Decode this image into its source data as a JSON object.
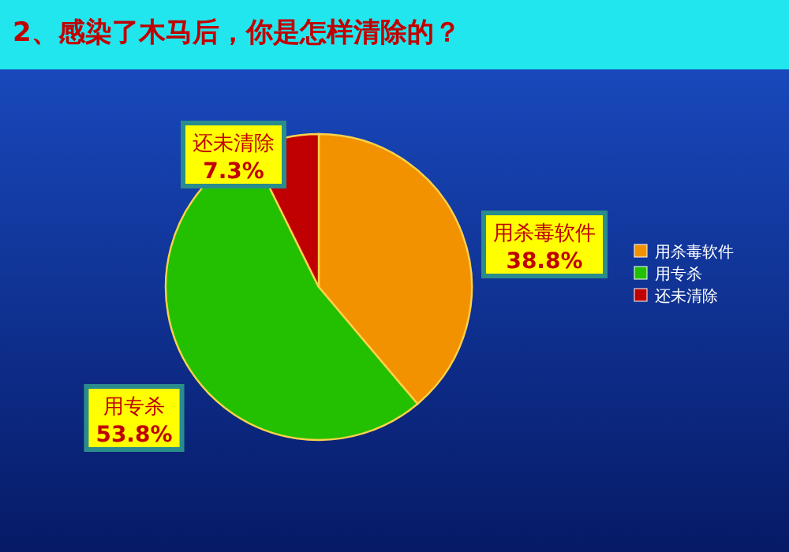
{
  "chart_data": {
    "type": "pie",
    "title": "2、感染了木马后，你是怎样清除的？",
    "categories": [
      "用杀毒软件",
      "用专杀",
      "还未清除"
    ],
    "values": [
      38.8,
      53.8,
      7.3
    ],
    "value_labels": [
      "38.8%",
      "53.8%",
      "7.3%"
    ],
    "colors": [
      "#f39200",
      "#22c000",
      "#c00000"
    ],
    "legend": "right"
  }
}
